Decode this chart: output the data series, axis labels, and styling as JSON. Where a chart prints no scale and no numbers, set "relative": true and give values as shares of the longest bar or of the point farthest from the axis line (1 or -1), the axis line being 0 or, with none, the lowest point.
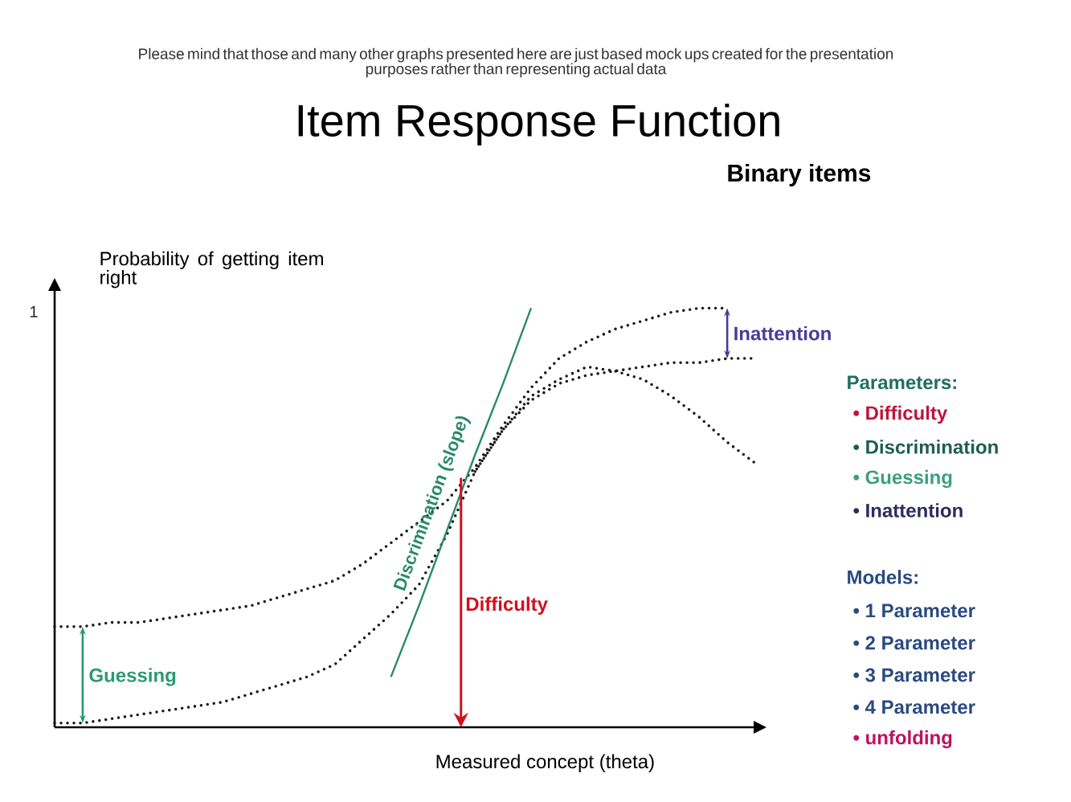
{
  "chart_data": {
    "type": "line",
    "relative": true,
    "title": "Item Response Function",
    "subtitle": "Binary items",
    "xlabel": "Measured concept (theta)",
    "ylabel": "Probability of getting item right",
    "line_style": "dotted",
    "categories": [
      null,
      null,
      null,
      null,
      null,
      null,
      null,
      null,
      null,
      null,
      null,
      null,
      null,
      null,
      null,
      null,
      null,
      null,
      null,
      null,
      null,
      null,
      null,
      null,
      null,
      null
    ],
    "series": [
      {
        "color": "#1a1a1a",
        "values": [
          0.24,
          0.24,
          0.25,
          0.25,
          0.26,
          0.27,
          0.28,
          0.29,
          0.31,
          0.33,
          0.35,
          0.39,
          0.44,
          0.49,
          0.54,
          0.62,
          0.72,
          0.81,
          0.88,
          0.92,
          0.95,
          0.97,
          0.99,
          1.0,
          1.0,
          null
        ]
      },
      {
        "color": "#1a1a1a",
        "values": [
          0.01,
          0.01,
          0.02,
          0.03,
          0.04,
          0.05,
          0.06,
          0.08,
          0.1,
          0.12,
          0.15,
          0.21,
          0.27,
          0.34,
          0.46,
          0.61,
          0.71,
          0.78,
          0.82,
          0.84,
          0.85,
          0.86,
          0.87,
          0.87,
          0.88,
          0.88
        ]
      },
      {
        "color": "#1a1a1a",
        "values": [
          null,
          null,
          null,
          null,
          null,
          null,
          null,
          null,
          null,
          null,
          null,
          null,
          null,
          null,
          null,
          0.61,
          0.71,
          0.79,
          0.83,
          0.86,
          0.85,
          0.83,
          0.79,
          0.74,
          0.68,
          0.63
        ]
      },
      {
        "name": "Discrimination (slope)",
        "color": "#2a8a6a",
        "line_style": "solid",
        "values": [
          null,
          null,
          null,
          null,
          null,
          null,
          null,
          null,
          null,
          null,
          null,
          null,
          0.12,
          0.29,
          0.47,
          0.65,
          0.82,
          1.0,
          null,
          null,
          null,
          null,
          null,
          null,
          null,
          null
        ]
      }
    ],
    "annotations": [
      "Please mind that those and many other graphs presented here are just based mock ups created for the presentation purposes rather than representing actual data",
      "1",
      "Guessing",
      "Inattention",
      "Difficulty",
      "Parameters:",
      "• Difficulty",
      "• Discrimination",
      "• Guessing",
      "• Inattention",
      "Models:",
      "• 1 Parameter",
      "• 2 Parameter",
      "• 3 Parameter",
      "• 4 Parameter",
      "• unfolding"
    ]
  }
}
